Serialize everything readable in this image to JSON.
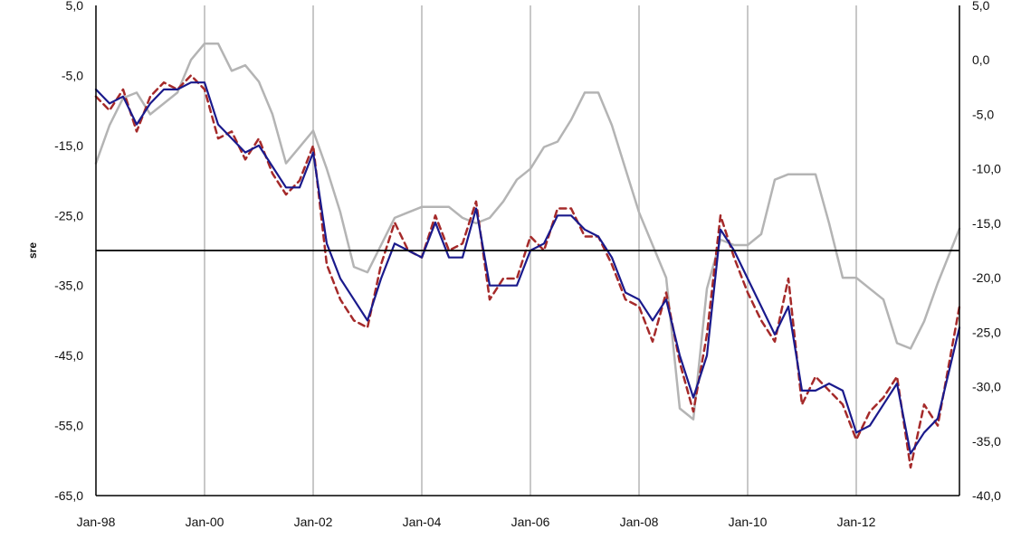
{
  "chart_data": {
    "type": "line",
    "title": "",
    "ylabel": "sre",
    "ylabel_right": "",
    "xlabel": "",
    "x_tick_labels": [
      "Jan-98",
      "Jan-00",
      "Jan-02",
      "Jan-04",
      "Jan-06",
      "Jan-08",
      "Jan-10",
      "Jan-12"
    ],
    "y_left": {
      "lim": [
        -65,
        5
      ],
      "ticks": [
        "5,0",
        "-5,0",
        "-15,0",
        "-25,0",
        "-35,0",
        "-45,0",
        "-55,0",
        "-65,0"
      ]
    },
    "y_right": {
      "lim": [
        -40,
        5
      ],
      "ticks": [
        "5,0",
        "0,0",
        "-5,0",
        "-10,0",
        "-15,0",
        "-20,0",
        "-25,0",
        "-30,0",
        "-35,0",
        "-40,0"
      ]
    },
    "x_range": [
      1998.0,
      2013.9
    ],
    "grid": "vertical-only",
    "reference_line_left": -30,
    "colors": {
      "solid_blue": "#1a1a8c",
      "dashed_red": "#a52a2a",
      "gray": "#b4b4b4",
      "grid": "#c8c8c8",
      "refline": "#000000"
    },
    "series": [
      {
        "style": "solid-blue",
        "axis": "left",
        "x": [
          1998.0,
          1998.25,
          1998.5,
          1998.75,
          1999.0,
          1999.25,
          1999.5,
          1999.75,
          2000.0,
          2000.25,
          2000.5,
          2000.75,
          2001.0,
          2001.25,
          2001.5,
          2001.75,
          2002.0,
          2002.25,
          2002.5,
          2002.75,
          2003.0,
          2003.25,
          2003.5,
          2003.75,
          2004.0,
          2004.25,
          2004.5,
          2004.75,
          2005.0,
          2005.25,
          2005.5,
          2005.75,
          2006.0,
          2006.25,
          2006.5,
          2006.75,
          2007.0,
          2007.25,
          2007.5,
          2007.75,
          2008.0,
          2008.25,
          2008.5,
          2008.75,
          2009.0,
          2009.25,
          2009.5,
          2009.75,
          2010.0,
          2010.25,
          2010.5,
          2010.75,
          2011.0,
          2011.25,
          2011.5,
          2011.75,
          2012.0,
          2012.25,
          2012.5,
          2012.75,
          2013.0,
          2013.25,
          2013.5,
          2013.9
        ],
        "y": [
          -7,
          -9,
          -8,
          -12,
          -9,
          -7,
          -7,
          -6,
          -6,
          -12,
          -14,
          -16,
          -15,
          -18,
          -21,
          -21,
          -16,
          -29,
          -34,
          -37,
          -40,
          -34,
          -29,
          -30,
          -31,
          -26,
          -31,
          -31,
          -24,
          -35,
          -35,
          -35,
          -30,
          -29,
          -25,
          -25,
          -27,
          -28,
          -31,
          -36,
          -37,
          -40,
          -37,
          -45,
          -51,
          -45,
          -27,
          -30,
          -34,
          -38,
          -42,
          -38,
          -50,
          -50,
          -49,
          -50,
          -56,
          -55,
          -52,
          -49,
          -59,
          -56,
          -54,
          -41
        ]
      },
      {
        "style": "dashed-red",
        "axis": "left",
        "x": [
          1998.0,
          1998.25,
          1998.5,
          1998.75,
          1999.0,
          1999.25,
          1999.5,
          1999.75,
          2000.0,
          2000.25,
          2000.5,
          2000.75,
          2001.0,
          2001.25,
          2001.5,
          2001.75,
          2002.0,
          2002.25,
          2002.5,
          2002.75,
          2003.0,
          2003.25,
          2003.5,
          2003.75,
          2004.0,
          2004.25,
          2004.5,
          2004.75,
          2005.0,
          2005.25,
          2005.5,
          2005.75,
          2006.0,
          2006.25,
          2006.5,
          2006.75,
          2007.0,
          2007.25,
          2007.5,
          2007.75,
          2008.0,
          2008.25,
          2008.5,
          2008.75,
          2009.0,
          2009.25,
          2009.5,
          2009.75,
          2010.0,
          2010.25,
          2010.5,
          2010.75,
          2011.0,
          2011.25,
          2011.5,
          2011.75,
          2012.0,
          2012.25,
          2012.5,
          2012.75,
          2013.0,
          2013.25,
          2013.5,
          2013.9
        ],
        "y": [
          -8,
          -10,
          -7,
          -13,
          -8,
          -6,
          -7,
          -5,
          -7,
          -14,
          -13,
          -17,
          -14,
          -19,
          -22,
          -20,
          -15,
          -32,
          -37,
          -40,
          -41,
          -32,
          -26,
          -30,
          -31,
          -25,
          -30,
          -29,
          -23,
          -37,
          -34,
          -34,
          -28,
          -30,
          -24,
          -24,
          -28,
          -28,
          -32,
          -37,
          -38,
          -43,
          -36,
          -46,
          -53,
          -42,
          -25,
          -31,
          -36,
          -40,
          -43,
          -34,
          -52,
          -48,
          -50,
          -52,
          -57,
          -53,
          -51,
          -48,
          -61,
          -52,
          -55,
          -38
        ]
      },
      {
        "style": "gray",
        "axis": "right",
        "x": [
          1998.0,
          1998.25,
          1998.5,
          1998.75,
          1999.0,
          1999.25,
          1999.5,
          1999.75,
          2000.0,
          2000.25,
          2000.5,
          2000.75,
          2001.0,
          2001.25,
          2001.5,
          2001.75,
          2002.0,
          2002.25,
          2002.5,
          2002.75,
          2003.0,
          2003.25,
          2003.5,
          2003.75,
          2004.0,
          2004.25,
          2004.5,
          2004.75,
          2005.0,
          2005.25,
          2005.5,
          2005.75,
          2006.0,
          2006.25,
          2006.5,
          2006.75,
          2007.0,
          2007.25,
          2007.5,
          2007.75,
          2008.0,
          2008.25,
          2008.5,
          2008.75,
          2009.0,
          2009.25,
          2009.5,
          2009.75,
          2010.0,
          2010.25,
          2010.5,
          2010.75,
          2011.0,
          2011.25,
          2011.5,
          2011.75,
          2012.0,
          2012.25,
          2012.5,
          2012.75,
          2013.0,
          2013.25,
          2013.5,
          2013.9
        ],
        "y": [
          -9.5,
          -6,
          -3.5,
          -3,
          -5,
          -4,
          -3,
          0,
          1.5,
          1.5,
          -1,
          -0.5,
          -2,
          -5,
          -9.5,
          -8,
          -6.5,
          -10,
          -14,
          -19,
          -19.5,
          -17,
          -14.5,
          -14,
          -13.5,
          -13.5,
          -13.5,
          -14.5,
          -15,
          -14.5,
          -13,
          -11,
          -10,
          -8,
          -7.5,
          -5.5,
          -3,
          -3,
          -6,
          -10,
          -14,
          -17,
          -20,
          -32,
          -33,
          -21,
          -16.5,
          -17,
          -17,
          -16,
          -11,
          -10.5,
          -10.5,
          -10.5,
          -15,
          -20,
          -20,
          -21,
          -22,
          -26,
          -26.5,
          -24,
          -20.5,
          -15.5
        ]
      }
    ]
  }
}
